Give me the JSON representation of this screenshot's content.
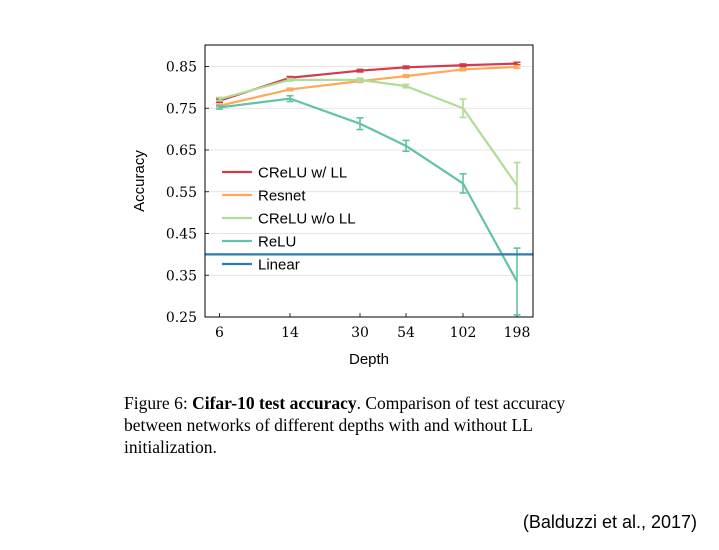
{
  "chart_data": {
    "type": "line",
    "xlabel": "Depth",
    "ylabel": "Accuracy",
    "categories": [
      "6",
      "14",
      "30",
      "54",
      "102",
      "198"
    ],
    "ylim": [
      0.25,
      0.9
    ],
    "yticks": [
      "0.25",
      "0.35",
      "0.45",
      "0.55",
      "0.65",
      "0.75",
      "0.85"
    ],
    "grid": "horizontal",
    "legend_position": "left-center",
    "series": [
      {
        "name": "CReLU w/ LL",
        "color": "#d13b4b",
        "values": [
          0.768,
          0.823,
          0.84,
          0.848,
          0.853,
          0.857
        ],
        "errors": [
          0.004,
          0.003,
          0.003,
          0.003,
          0.003,
          0.003
        ]
      },
      {
        "name": "Resnet",
        "color": "#fba95b",
        "values": [
          0.756,
          0.795,
          0.815,
          0.827,
          0.843,
          0.849
        ],
        "errors": [
          0.003,
          0.003,
          0.003,
          0.003,
          0.003,
          0.003
        ]
      },
      {
        "name": "CReLU w/o LL",
        "color": "#b0dc96",
        "values": [
          0.772,
          0.818,
          0.818,
          0.803,
          0.75,
          0.565
        ],
        "errors": [
          0.004,
          0.003,
          0.004,
          0.004,
          0.022,
          0.055
        ]
      },
      {
        "name": "ReLU",
        "color": "#62c2a4",
        "values": [
          0.752,
          0.773,
          0.713,
          0.66,
          0.57,
          0.335
        ],
        "errors": [
          0.004,
          0.007,
          0.014,
          0.013,
          0.023,
          0.08
        ]
      },
      {
        "name": "Linear",
        "color": "#2b7bb9",
        "values": [
          0.4,
          0.4,
          0.4,
          0.4,
          0.4,
          0.4
        ],
        "errors": null
      }
    ]
  },
  "caption": {
    "prefix": "Figure 6: ",
    "title": "Cifar-10 test accuracy",
    "text": ". Comparison of test accuracy between networks of different depths with and without LL initialization."
  },
  "citation": "(Balduzzi et al., 2017)"
}
